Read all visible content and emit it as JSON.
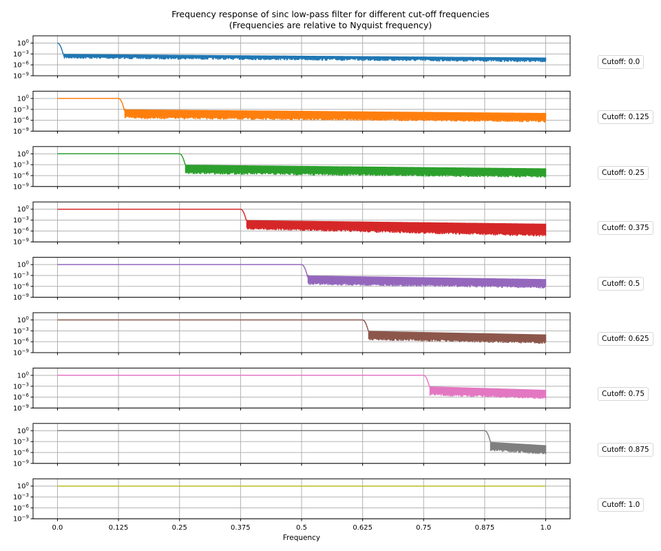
{
  "chart_data": {
    "type": "line",
    "title": "Frequency response of sinc low-pass filter for different cut-off frequencies",
    "subtitle": "(Frequencies are relative to Nyquist frequency)",
    "xlabel": "Frequency",
    "ylabel": "",
    "xlim": [
      -0.05,
      1.05
    ],
    "ylim": [
      1e-09,
      100
    ],
    "yscale": "log",
    "grid": true,
    "xticks": [
      "0.0",
      "0.125",
      "0.25",
      "0.375",
      "0.5",
      "0.625",
      "0.75",
      "0.875",
      "1.0"
    ],
    "xtick_values": [
      0,
      0.125,
      0.25,
      0.375,
      0.5,
      0.625,
      0.75,
      0.875,
      1.0
    ],
    "yticks": [
      "10^0",
      "10^-3",
      "10^-6",
      "10^-9"
    ],
    "ytick_exponents": [
      0,
      -3,
      -6,
      -9
    ],
    "legend_placement": "right, outside each panel",
    "series": [
      {
        "name": "Cutoff: 0.0",
        "cutoff": 0.0,
        "color": "#1f77b4",
        "passband_gain": 1,
        "stopband_upper": [
          0.001,
          0.0001
        ],
        "stopband_lower": [
          0.0002,
          2e-05
        ]
      },
      {
        "name": "Cutoff: 0.125",
        "cutoff": 0.125,
        "color": "#ff7f0e",
        "passband_gain": 1,
        "stopband_upper": [
          0.001,
          0.0001
        ],
        "stopband_lower": [
          1e-05,
          1e-06
        ]
      },
      {
        "name": "Cutoff: 0.25",
        "cutoff": 0.25,
        "color": "#2ca02c",
        "passband_gain": 1,
        "stopband_upper": [
          0.001,
          0.0001
        ],
        "stopband_lower": [
          1e-05,
          1e-06
        ]
      },
      {
        "name": "Cutoff: 0.375",
        "cutoff": 0.375,
        "color": "#d62728",
        "passband_gain": 1,
        "stopband_upper": [
          0.001,
          0.0001
        ],
        "stopband_lower": [
          1e-05,
          1e-07
        ]
      },
      {
        "name": "Cutoff: 0.5",
        "cutoff": 0.5,
        "color": "#9467bd",
        "passband_gain": 1,
        "stopband_upper": [
          0.001,
          0.0001
        ],
        "stopband_lower": [
          1e-05,
          1e-06
        ]
      },
      {
        "name": "Cutoff: 0.625",
        "cutoff": 0.625,
        "color": "#8c564b",
        "passband_gain": 1,
        "stopband_upper": [
          0.001,
          0.0001
        ],
        "stopband_lower": [
          1e-05,
          1e-06
        ]
      },
      {
        "name": "Cutoff: 0.75",
        "cutoff": 0.75,
        "color": "#e377c2",
        "passband_gain": 1,
        "stopband_upper": [
          0.001,
          0.0001
        ],
        "stopband_lower": [
          1e-05,
          1e-06
        ]
      },
      {
        "name": "Cutoff: 0.875",
        "cutoff": 0.875,
        "color": "#7f7f7f",
        "passband_gain": 1,
        "stopband_upper": [
          0.001,
          0.0001
        ],
        "stopband_lower": [
          1e-05,
          1e-06
        ]
      },
      {
        "name": "Cutoff: 1.0",
        "cutoff": 1.0,
        "color": "#bcbd22",
        "passband_gain": 1,
        "stopband_upper": [
          1,
          1
        ],
        "stopband_lower": [
          1,
          1
        ]
      }
    ]
  }
}
